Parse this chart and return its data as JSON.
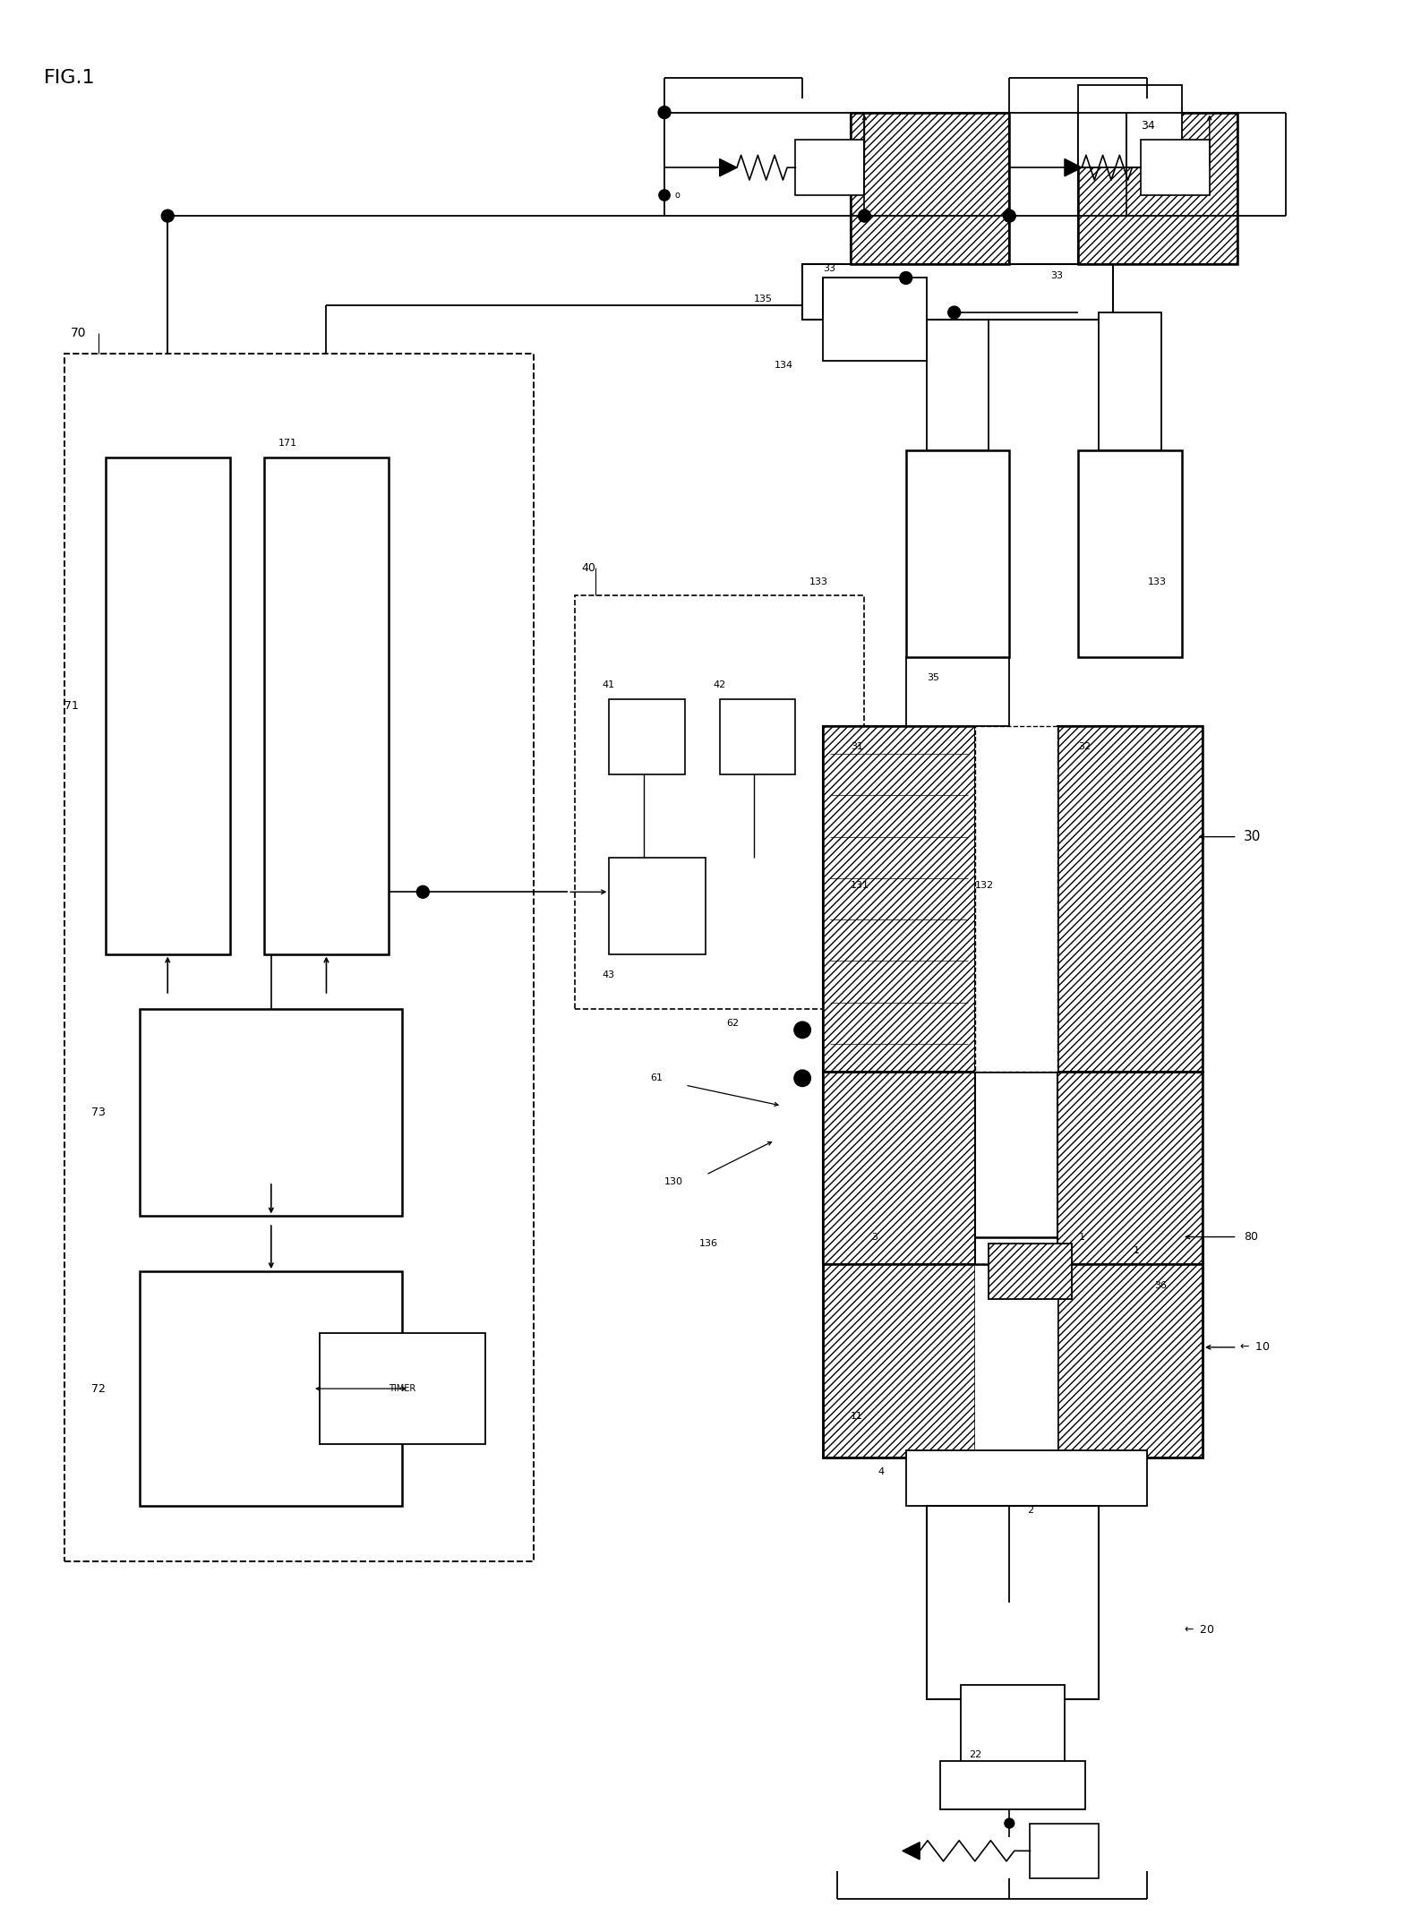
{
  "title": "FIG.1",
  "bg": "#ffffff",
  "lc": "#000000",
  "fw": 20.11,
  "fh": 27.52,
  "dpi": 100
}
